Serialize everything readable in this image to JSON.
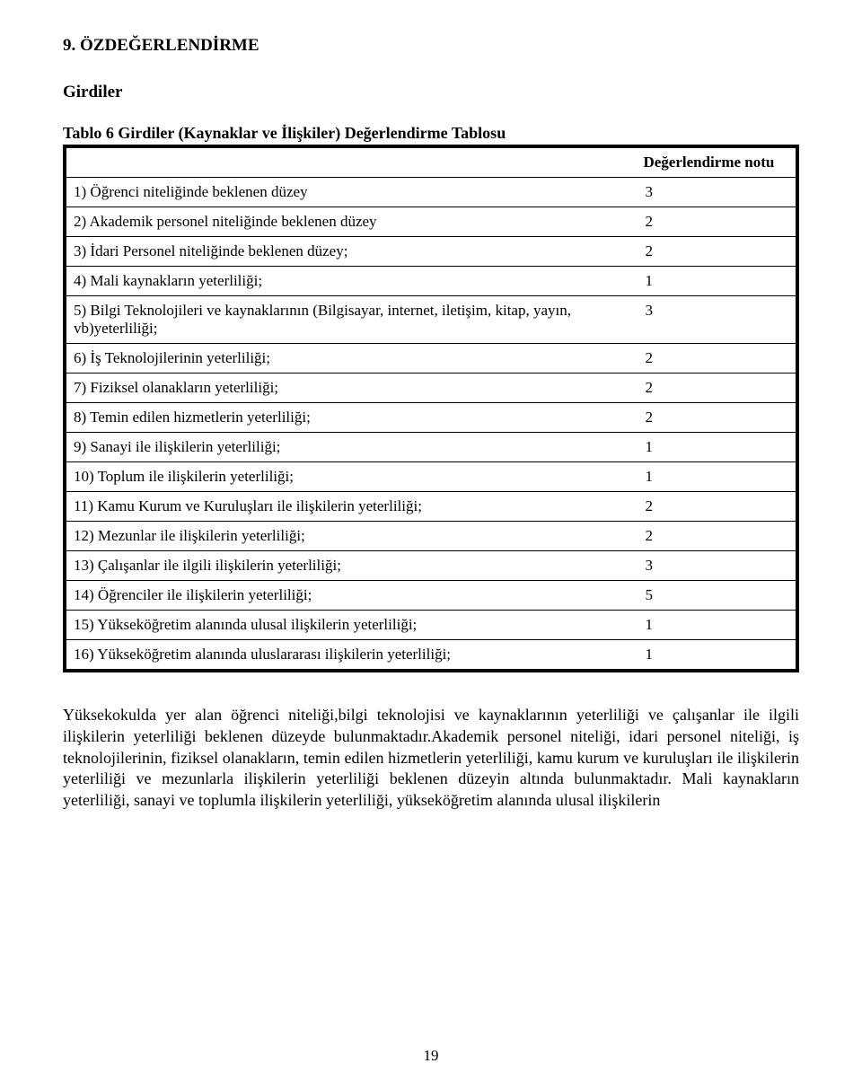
{
  "section_heading": "9. ÖZDEĞERLENDİRME",
  "subheading": "Girdiler",
  "table_caption": "Tablo 6 Girdiler (Kaynaklar ve İlişkiler) Değerlendirme Tablosu",
  "score_header": "Değerlendirme notu",
  "rows": [
    {
      "label": "1) Öğrenci niteliğinde beklenen düzey",
      "score": "3"
    },
    {
      "label": "2) Akademik personel niteliğinde beklenen düzey",
      "score": "2"
    },
    {
      "label": "3) İdari Personel niteliğinde beklenen düzey;",
      "score": "2"
    },
    {
      "label": "4) Mali kaynakların yeterliliği;",
      "score": "1"
    },
    {
      "label": "5) Bilgi Teknolojileri ve kaynaklarının (Bilgisayar, internet, iletişim, kitap, yayın, vb)yeterliliği;",
      "score": "3"
    },
    {
      "label": "6) İş Teknolojilerinin yeterliliği;",
      "score": "2"
    },
    {
      "label": "7) Fiziksel olanakların yeterliliği;",
      "score": "2"
    },
    {
      "label": "8) Temin edilen hizmetlerin yeterliliği;",
      "score": "2"
    },
    {
      "label": "9) Sanayi ile ilişkilerin yeterliliği;",
      "score": "1"
    },
    {
      "label": "10) Toplum ile ilişkilerin yeterliliği;",
      "score": "1"
    },
    {
      "label": "11) Kamu Kurum ve Kuruluşları ile ilişkilerin yeterliliği;",
      "score": "2"
    },
    {
      "label": "12) Mezunlar ile ilişkilerin yeterliliği;",
      "score": "2"
    },
    {
      "label": "13) Çalışanlar ile ilgili ilişkilerin yeterliliği;",
      "score": "3"
    },
    {
      "label": "14) Öğrenciler ile ilişkilerin yeterliliği;",
      "score": "5"
    },
    {
      "label": "15) Yükseköğretim alanında ulusal ilişkilerin yeterliliği;",
      "score": "1"
    },
    {
      "label": "16) Yükseköğretim alanında uluslararası ilişkilerin yeterliliği;",
      "score": "1"
    }
  ],
  "body_paragraph": "Yüksekokulda yer alan öğrenci niteliği,bilgi teknolojisi ve kaynaklarının yeterliliği ve çalışanlar ile ilgili ilişkilerin yeterliliği beklenen düzeyde bulunmaktadır.Akademik personel niteliği, idari personel niteliği, iş teknolojilerinin, fiziksel olanakların, temin edilen hizmetlerin yeterliliği, kamu kurum ve kuruluşları ile ilişkilerin yeterliliği ve mezunlarla ilişkilerin yeterliliği beklenen düzeyin altında bulunmaktadır. Mali kaynakların yeterliliği, sanayi ve toplumla ilişkilerin yeterliliği, yükseköğretim alanında ulusal ilişkilerin",
  "page_number": "19",
  "colors": {
    "text": "#000000",
    "background": "#ffffff",
    "table_border": "#000000"
  },
  "fonts": {
    "family": "Times New Roman",
    "heading_size_pt": 14,
    "body_size_pt": 13
  }
}
